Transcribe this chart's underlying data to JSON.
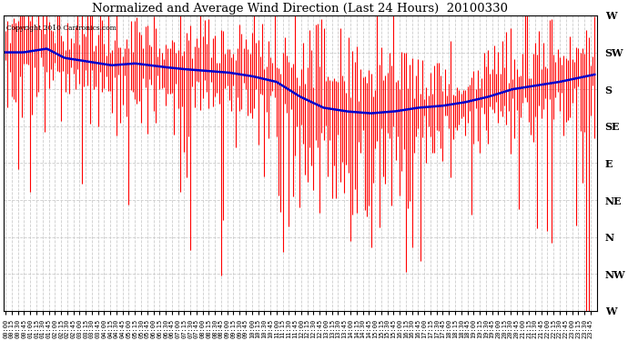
{
  "title": "Normalized and Average Wind Direction (Last 24 Hours)  20100330",
  "copyright": "Copyright 2010 Cartronics.com",
  "background_color": "#ffffff",
  "grid_color": "#cccccc",
  "y_labels": [
    "W",
    "SW",
    "S",
    "SE",
    "E",
    "NE",
    "N",
    "NW",
    "W"
  ],
  "y_values": [
    8,
    7,
    6,
    5,
    4,
    3,
    2,
    1,
    0
  ],
  "ylim": [
    0,
    8
  ],
  "red_color": "#ff0000",
  "blue_color": "#0000cc",
  "n_points": 288,
  "avg_keypts_x": [
    0.0,
    0.03,
    0.07,
    0.1,
    0.14,
    0.18,
    0.22,
    0.27,
    0.3,
    0.34,
    0.38,
    0.42,
    0.46,
    0.5,
    0.54,
    0.58,
    0.62,
    0.66,
    0.7,
    0.74,
    0.78,
    0.82,
    0.86,
    0.9,
    0.94,
    1.0
  ],
  "avg_keypts_y": [
    7.0,
    7.0,
    7.1,
    6.85,
    6.75,
    6.65,
    6.7,
    6.6,
    6.55,
    6.5,
    6.45,
    6.35,
    6.2,
    5.8,
    5.5,
    5.4,
    5.35,
    5.4,
    5.5,
    5.55,
    5.65,
    5.8,
    6.0,
    6.1,
    6.2,
    6.4
  ]
}
